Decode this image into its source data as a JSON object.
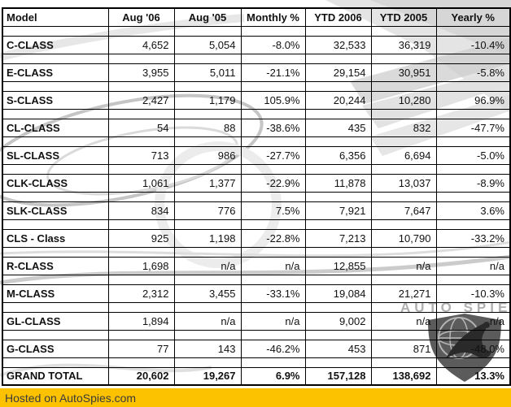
{
  "colors": {
    "footer_bg": "#FCC200",
    "footer_text": "#3A3A3A",
    "table_border": "#000000",
    "watermark_gray": "#808080"
  },
  "watermark": {
    "brand": "AUTO SPIES",
    "logo": "shield-globe-eagle"
  },
  "footer": {
    "text": "Hosted on AutoSpies.com"
  },
  "chart_data": {
    "type": "table",
    "columns": [
      "Model",
      "Aug '06",
      "Aug '05",
      "Monthly %",
      "YTD 2006",
      "YTD 2005",
      "Yearly %"
    ],
    "rows": [
      [
        "C-CLASS",
        "4,652",
        "5,054",
        "-8.0%",
        "32,533",
        "36,319",
        "-10.4%"
      ],
      [
        "E-CLASS",
        "3,955",
        "5,011",
        "-21.1%",
        "29,154",
        "30,951",
        "-5.8%"
      ],
      [
        "S-CLASS",
        "2,427",
        "1,179",
        "105.9%",
        "20,244",
        "10,280",
        "96.9%"
      ],
      [
        "CL-CLASS",
        "54",
        "88",
        "-38.6%",
        "435",
        "832",
        "-47.7%"
      ],
      [
        "SL-CLASS",
        "713",
        "986",
        "-27.7%",
        "6,356",
        "6,694",
        "-5.0%"
      ],
      [
        "CLK-CLASS",
        "1,061",
        "1,377",
        "-22.9%",
        "11,878",
        "13,037",
        "-8.9%"
      ],
      [
        "SLK-CLASS",
        "834",
        "776",
        "7.5%",
        "7,921",
        "7,647",
        "3.6%"
      ],
      [
        "CLS - Class",
        "925",
        "1,198",
        "-22.8%",
        "7,213",
        "10,790",
        "-33.2%"
      ],
      [
        "R-CLASS",
        "1,698",
        "n/a",
        "n/a",
        "12,855",
        "n/a",
        "n/a"
      ],
      [
        "M-CLASS",
        "2,312",
        "3,455",
        "-33.1%",
        "19,084",
        "21,271",
        "-10.3%"
      ],
      [
        "GL-CLASS",
        "1,894",
        "n/a",
        "n/a",
        "9,002",
        "n/a",
        "n/a"
      ],
      [
        "G-CLASS",
        "77",
        "143",
        "-46.2%",
        "453",
        "871",
        "-48.0%"
      ]
    ],
    "grand_total": [
      "GRAND TOTAL",
      "20,602",
      "19,267",
      "6.9%",
      "157,128",
      "138,692",
      "13.3%"
    ]
  }
}
